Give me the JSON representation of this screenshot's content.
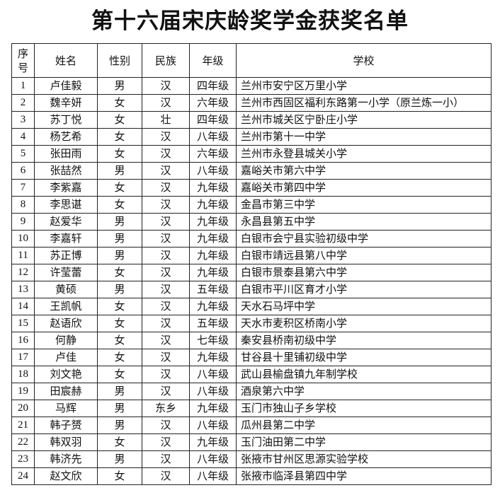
{
  "title": "第十六届宋庆龄奖学金获奖名单",
  "columns": [
    "序号",
    "姓名",
    "性别",
    "民族",
    "年级",
    "学校"
  ],
  "rows": [
    [
      "1",
      "卢佳毅",
      "男",
      "汉",
      "四年级",
      "兰州市安宁区万里小学"
    ],
    [
      "2",
      "魏辛妍",
      "女",
      "汉",
      "六年级",
      "兰州市西固区福利东路第一小学（原兰炼一小）"
    ],
    [
      "3",
      "苏丁悦",
      "女",
      "壮",
      "四年级",
      "兰州市城关区宁卧庄小学"
    ],
    [
      "4",
      "杨艺希",
      "女",
      "汉",
      "八年级",
      "兰州市第十一中学"
    ],
    [
      "5",
      "张田雨",
      "女",
      "汉",
      "六年级",
      "兰州市永登县城关小学"
    ],
    [
      "6",
      "张喆然",
      "男",
      "汉",
      "八年级",
      "嘉峪关市第六中学"
    ],
    [
      "7",
      "李紫嘉",
      "女",
      "汉",
      "九年级",
      "嘉峪关市第四中学"
    ],
    [
      "8",
      "李思谌",
      "女",
      "汉",
      "九年级",
      "金昌市第三中学"
    ],
    [
      "9",
      "赵爱华",
      "男",
      "汉",
      "九年级",
      "永昌县第五中学"
    ],
    [
      "10",
      "李嘉轩",
      "男",
      "汉",
      "九年级",
      "白银市会宁县实验初级中学"
    ],
    [
      "11",
      "苏正博",
      "男",
      "汉",
      "九年级",
      "白银市靖远县第八中学"
    ],
    [
      "12",
      "许莹蕾",
      "女",
      "汉",
      "九年级",
      "白银市景泰县第六中学"
    ],
    [
      "13",
      "黄硕",
      "男",
      "汉",
      "五年级",
      "白银市平川区育才小学"
    ],
    [
      "14",
      "王凯帆",
      "女",
      "汉",
      "九年级",
      "天水石马坪中学"
    ],
    [
      "15",
      "赵语欣",
      "女",
      "汉",
      "五年级",
      "天水市麦积区桥南小学"
    ],
    [
      "16",
      "何静",
      "女",
      "汉",
      "七年级",
      "秦安县桥南初级中学"
    ],
    [
      "17",
      "卢佳",
      "女",
      "汉",
      "九年级",
      "甘谷县十里铺初级中学"
    ],
    [
      "18",
      "刘文艳",
      "女",
      "汉",
      "八年级",
      "武山县榆盘镇九年制学校"
    ],
    [
      "19",
      "田宸赫",
      "男",
      "汉",
      "八年级",
      "酒泉第六中学"
    ],
    [
      "20",
      "马辉",
      "男",
      "东乡",
      "九年级",
      "玉门市独山子乡学校"
    ],
    [
      "21",
      "韩子赟",
      "男",
      "汉",
      "八年级",
      "瓜州县第二中学"
    ],
    [
      "22",
      "韩双羽",
      "女",
      "汉",
      "九年级",
      "玉门油田第二中学"
    ],
    [
      "23",
      "韩济先",
      "男",
      "汉",
      "八年级",
      "张掖市甘州区思源实验学校"
    ],
    [
      "24",
      "赵文欣",
      "女",
      "汉",
      "八年级",
      "张掖市临泽县第四中学"
    ]
  ]
}
